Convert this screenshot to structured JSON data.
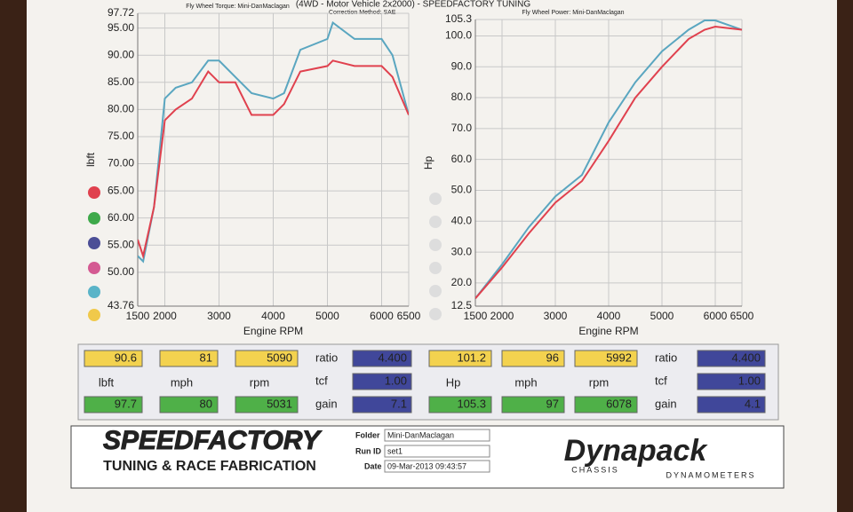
{
  "header": {
    "title": "(4WD - Motor Vehicle 2x2000) - SPEEDFACTORY TUNING",
    "correction": "Correction Method: SAE"
  },
  "chart_data": [
    {
      "type": "line",
      "title": "Fly Wheel Torque: Mini-DanMaclagan",
      "xlabel": "Engine RPM",
      "ylabel": "lbft",
      "xlim": [
        1500,
        6500
      ],
      "xticks": [
        1500,
        2000,
        3000,
        4000,
        5000,
        6000,
        6500
      ],
      "ylim": [
        43.76,
        97.72
      ],
      "yticks": [
        {
          "value": 43.76,
          "label": "43.76"
        },
        {
          "value": 50,
          "label": "50.00"
        },
        {
          "value": 55,
          "label": "55.00"
        },
        {
          "value": 60,
          "label": "60.00"
        },
        {
          "value": 65,
          "label": "65.00"
        },
        {
          "value": 70,
          "label": "70.00"
        },
        {
          "value": 75,
          "label": "75.00"
        },
        {
          "value": 80,
          "label": "80.00"
        },
        {
          "value": 85,
          "label": "85.00"
        },
        {
          "value": 90,
          "label": "90.00"
        },
        {
          "value": 95,
          "label": "95.00"
        },
        {
          "value": 97.72,
          "label": "97.72"
        }
      ],
      "grid": true,
      "x": [
        1500,
        1600,
        1800,
        2000,
        2200,
        2500,
        2800,
        3000,
        3300,
        3600,
        4000,
        4200,
        4500,
        5000,
        5100,
        5500,
        6000,
        6200,
        6500
      ],
      "series": [
        {
          "color": "#5aa6c0",
          "values": [
            53,
            52,
            62,
            82,
            84,
            85,
            89,
            89,
            86,
            83,
            82,
            83,
            91,
            93,
            96,
            93,
            93,
            90,
            79
          ]
        },
        {
          "color": "#e0414e",
          "values": [
            56,
            53,
            62,
            78,
            80,
            82,
            87,
            85,
            85,
            79,
            79,
            81,
            87,
            88,
            89,
            88,
            88,
            86,
            79
          ]
        }
      ]
    },
    {
      "type": "line",
      "title": "Fly Wheel Power: Mini-DanMaclagan",
      "xlabel": "Engine RPM",
      "ylabel": "Hp",
      "xlim": [
        1500,
        6500
      ],
      "xticks": [
        1500,
        2000,
        3000,
        4000,
        5000,
        6000,
        6500
      ],
      "ylim": [
        12.5,
        105.3
      ],
      "yticks": [
        12.5,
        {
          "value": 20,
          "label": "20.0"
        },
        {
          "value": 30,
          "label": "30.0"
        },
        {
          "value": 40,
          "label": "40.0"
        },
        {
          "value": 50,
          "label": "50.0"
        },
        {
          "value": 60,
          "label": "60.0"
        },
        {
          "value": 70,
          "label": "70.0"
        },
        {
          "value": 80,
          "label": "80.0"
        },
        {
          "value": 90,
          "label": "90.0"
        },
        {
          "value": 100,
          "label": "100.0"
        },
        105.3
      ],
      "grid": true,
      "x": [
        1500,
        2000,
        2500,
        3000,
        3500,
        4000,
        4500,
        5000,
        5500,
        5800,
        6000,
        6500
      ],
      "series": [
        {
          "color": "#5aa6c0",
          "values": [
            15,
            26,
            38,
            48,
            55,
            72,
            85,
            95,
            102,
            105,
            105,
            102
          ]
        },
        {
          "color": "#e0414e",
          "values": [
            15,
            25,
            36,
            46,
            53,
            66,
            80,
            90,
            99,
            102,
            103,
            102
          ]
        }
      ]
    }
  ],
  "readings": [
    {
      "peak": [
        "90.6",
        "81",
        "5090"
      ],
      "units": [
        "lbft",
        "mph",
        "rpm"
      ],
      "max": [
        "97.7",
        "80",
        "5031"
      ],
      "ratio_label": "ratio",
      "ratio": "4.400",
      "tcf_label": "tcf",
      "tcf": "1.00",
      "gain_label": "gain",
      "gain": "7.1"
    },
    {
      "peak": [
        "101.2",
        "96",
        "5992"
      ],
      "units": [
        "Hp",
        "mph",
        "rpm"
      ],
      "max": [
        "105.3",
        "97",
        "6078"
      ],
      "ratio_label": "ratio",
      "ratio": "4.400",
      "tcf_label": "tcf",
      "tcf": "1.00",
      "gain_label": "gain",
      "gain": "4.1"
    }
  ],
  "footer": {
    "brand": "SPEEDFACTORY",
    "tagline": "TUNING & RACE FABRICATION",
    "folder_label": "Folder",
    "folder": "Mini-DanMaclagan",
    "run_label": "Run ID",
    "run": "set1",
    "date_label": "Date",
    "date": "09-Mar-2013  09:43:57",
    "maker": "Dynapack",
    "maker_sub1": "CHASSIS",
    "maker_sub2": "DYNAMOMETERS"
  }
}
